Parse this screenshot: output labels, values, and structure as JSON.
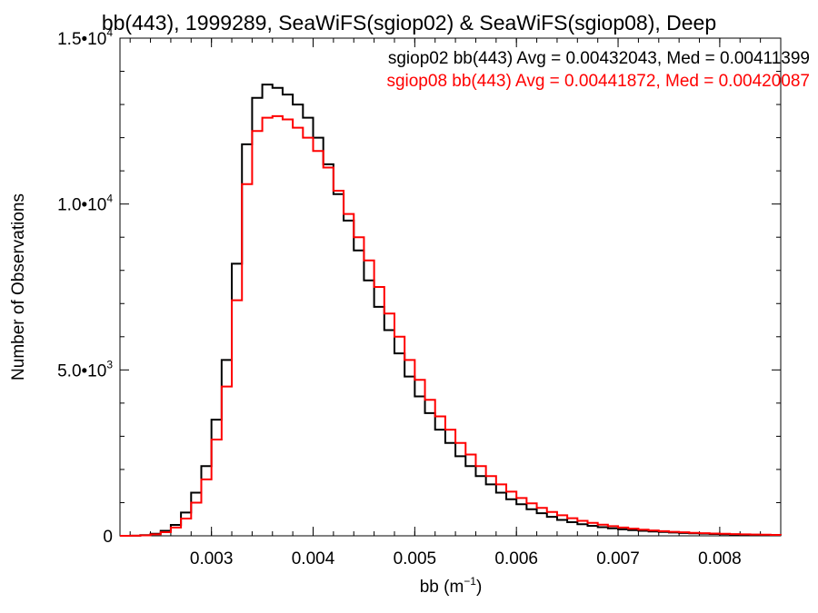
{
  "chart_data": {
    "type": "line",
    "title": "bb(443), 1999289, SeaWiFS(sgiop02) & SeaWiFS(sgiop08), Deep",
    "xlabel": "bb (m",
    "xlabel_sup": "−1",
    "xlabel_close": ")",
    "ylabel": "Number of Observations",
    "xlim": [
      0.0021,
      0.0086
    ],
    "ylim": [
      0,
      15000
    ],
    "x_ticks": [
      {
        "value": 0.003,
        "label": "0.003"
      },
      {
        "value": 0.004,
        "label": "0.004"
      },
      {
        "value": 0.005,
        "label": "0.005"
      },
      {
        "value": 0.006,
        "label": "0.006"
      },
      {
        "value": 0.007,
        "label": "0.007"
      },
      {
        "value": 0.008,
        "label": "0.008"
      }
    ],
    "y_ticks": [
      {
        "value": 0,
        "mant": "0",
        "exp": ""
      },
      {
        "value": 5000,
        "mant": "5.0•10",
        "exp": "3"
      },
      {
        "value": 10000,
        "mant": "1.0•10",
        "exp": "4"
      },
      {
        "value": 15000,
        "mant": "1.5•10",
        "exp": "4"
      }
    ],
    "grid": false,
    "legend_position": "top-right",
    "series": [
      {
        "name": "sgiop02 bb(443) Avg = 0.00432043, Med = 0.00411399",
        "color": "#000000",
        "x": [
          0.0021,
          0.0022,
          0.0023,
          0.0024,
          0.0025,
          0.0026,
          0.0027,
          0.0028,
          0.0029,
          0.003,
          0.0031,
          0.0032,
          0.0033,
          0.0034,
          0.0035,
          0.0036,
          0.0037,
          0.0038,
          0.0039,
          0.004,
          0.0041,
          0.0042,
          0.0043,
          0.0044,
          0.0045,
          0.0046,
          0.0047,
          0.0048,
          0.0049,
          0.005,
          0.0051,
          0.0052,
          0.0053,
          0.0054,
          0.0055,
          0.0056,
          0.0057,
          0.0058,
          0.0059,
          0.006,
          0.0061,
          0.0062,
          0.0063,
          0.0064,
          0.0065,
          0.0066,
          0.0067,
          0.0068,
          0.0069,
          0.007,
          0.0071,
          0.0072,
          0.0073,
          0.0074,
          0.0075,
          0.0076,
          0.0077,
          0.0078,
          0.0079,
          0.008,
          0.0081,
          0.0082,
          0.0083,
          0.0084,
          0.0085,
          0.0086
        ],
        "y": [
          0,
          5,
          20,
          60,
          150,
          330,
          700,
          1300,
          2100,
          3500,
          5300,
          8200,
          11800,
          13200,
          13600,
          13500,
          13300,
          13000,
          12600,
          12000,
          11200,
          10300,
          9500,
          8600,
          7700,
          6900,
          6200,
          5500,
          4800,
          4200,
          3700,
          3200,
          2800,
          2400,
          2100,
          1800,
          1550,
          1300,
          1100,
          950,
          800,
          680,
          570,
          480,
          410,
          350,
          300,
          260,
          225,
          195,
          170,
          150,
          130,
          115,
          100,
          85,
          75,
          65,
          55,
          48,
          42,
          36,
          30,
          26,
          22,
          18
        ]
      },
      {
        "name": "sgiop08 bb(443) Avg = 0.00441872, Med = 0.00420087",
        "color": "#ff0000",
        "x": [
          0.0021,
          0.0022,
          0.0023,
          0.0024,
          0.0025,
          0.0026,
          0.0027,
          0.0028,
          0.0029,
          0.003,
          0.0031,
          0.0032,
          0.0033,
          0.0034,
          0.0035,
          0.0036,
          0.0037,
          0.0038,
          0.0039,
          0.004,
          0.0041,
          0.0042,
          0.0043,
          0.0044,
          0.0045,
          0.0046,
          0.0047,
          0.0048,
          0.0049,
          0.005,
          0.0051,
          0.0052,
          0.0053,
          0.0054,
          0.0055,
          0.0056,
          0.0057,
          0.0058,
          0.0059,
          0.006,
          0.0061,
          0.0062,
          0.0063,
          0.0064,
          0.0065,
          0.0066,
          0.0067,
          0.0068,
          0.0069,
          0.007,
          0.0071,
          0.0072,
          0.0073,
          0.0074,
          0.0075,
          0.0076,
          0.0077,
          0.0078,
          0.0079,
          0.008,
          0.0081,
          0.0082,
          0.0083,
          0.0084,
          0.0085,
          0.0086
        ],
        "y": [
          0,
          4,
          15,
          45,
          110,
          250,
          520,
          1000,
          1700,
          2900,
          4500,
          7100,
          10600,
          12200,
          12600,
          12650,
          12550,
          12300,
          12000,
          11600,
          11100,
          10400,
          9700,
          9000,
          8300,
          7500,
          6700,
          6000,
          5300,
          4700,
          4100,
          3600,
          3200,
          2800,
          2450,
          2100,
          1800,
          1550,
          1330,
          1140,
          980,
          840,
          720,
          620,
          530,
          450,
          390,
          335,
          290,
          250,
          215,
          185,
          160,
          140,
          120,
          105,
          90,
          80,
          70,
          60,
          52,
          45,
          39,
          33,
          28,
          24
        ]
      }
    ]
  }
}
